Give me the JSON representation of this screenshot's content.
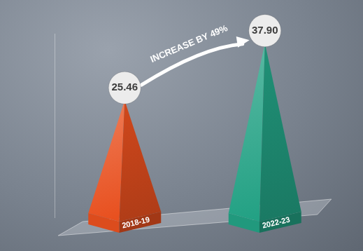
{
  "chart_data": {
    "type": "bar",
    "categories": [
      "2018-19",
      "2022-23"
    ],
    "values": [
      25.46,
      37.9
    ],
    "value_labels": [
      "25.46",
      "37.90"
    ],
    "colors": [
      "#e8501f",
      "#23a184"
    ],
    "ylim": [
      0,
      40
    ],
    "annotations": [
      "INCREASE BY 49%"
    ],
    "data_labels": true,
    "tick_labels": false,
    "grid": false
  }
}
